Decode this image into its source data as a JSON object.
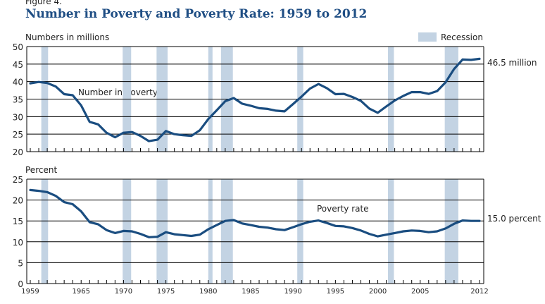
{
  "figure_label": "Figure 4.",
  "title": "Number in Poverty and Poverty Rate: 1959 to 2012",
  "legend": {
    "recession_label": "Recession",
    "recession_color": "#c3d3e3"
  },
  "colors": {
    "line": "#1a4d80",
    "title": "#1f4e84",
    "grid": "#000000"
  },
  "chart_data": [
    {
      "type": "line",
      "ylabel": "Numbers in millions",
      "series_label": "Number in poverty",
      "end_label": "46.5 million",
      "ylim": [
        20,
        50
      ],
      "yticks": [
        20,
        25,
        30,
        35,
        40,
        45,
        50
      ],
      "grid": true,
      "x": [
        1959,
        1960,
        1961,
        1962,
        1963,
        1964,
        1965,
        1966,
        1967,
        1968,
        1969,
        1970,
        1971,
        1972,
        1973,
        1974,
        1975,
        1976,
        1977,
        1978,
        1979,
        1980,
        1981,
        1982,
        1983,
        1984,
        1985,
        1986,
        1987,
        1988,
        1989,
        1990,
        1991,
        1992,
        1993,
        1994,
        1995,
        1996,
        1997,
        1998,
        1999,
        2000,
        2001,
        2002,
        2003,
        2004,
        2005,
        2006,
        2007,
        2008,
        2009,
        2010,
        2011,
        2012
      ],
      "values": [
        39.5,
        39.9,
        39.6,
        38.6,
        36.4,
        36.1,
        33.2,
        28.5,
        27.8,
        25.4,
        24.1,
        25.4,
        25.6,
        24.5,
        23.0,
        23.4,
        25.9,
        25.0,
        24.7,
        24.5,
        26.1,
        29.3,
        31.8,
        34.4,
        35.3,
        33.7,
        33.1,
        32.4,
        32.2,
        31.7,
        31.5,
        33.6,
        35.7,
        38.0,
        39.3,
        38.1,
        36.4,
        36.5,
        35.6,
        34.5,
        32.3,
        31.1,
        32.9,
        34.6,
        35.9,
        37.0,
        37.0,
        36.5,
        37.3,
        39.8,
        43.6,
        46.3,
        46.2,
        46.5
      ]
    },
    {
      "type": "line",
      "ylabel": "Percent",
      "series_label": "Poverty rate",
      "end_label": "15.0 percent",
      "ylim": [
        0,
        25
      ],
      "yticks": [
        0,
        5,
        10,
        15,
        20,
        25
      ],
      "grid": true,
      "x": [
        1959,
        1960,
        1961,
        1962,
        1963,
        1964,
        1965,
        1966,
        1967,
        1968,
        1969,
        1970,
        1971,
        1972,
        1973,
        1974,
        1975,
        1976,
        1977,
        1978,
        1979,
        1980,
        1981,
        1982,
        1983,
        1984,
        1985,
        1986,
        1987,
        1988,
        1989,
        1990,
        1991,
        1992,
        1993,
        1994,
        1995,
        1996,
        1997,
        1998,
        1999,
        2000,
        2001,
        2002,
        2003,
        2004,
        2005,
        2006,
        2007,
        2008,
        2009,
        2010,
        2011,
        2012
      ],
      "values": [
        22.4,
        22.2,
        21.9,
        21.0,
        19.5,
        19.0,
        17.3,
        14.7,
        14.2,
        12.8,
        12.1,
        12.6,
        12.5,
        11.9,
        11.1,
        11.2,
        12.3,
        11.8,
        11.6,
        11.4,
        11.7,
        13.0,
        14.0,
        15.0,
        15.2,
        14.4,
        14.0,
        13.6,
        13.4,
        13.0,
        12.8,
        13.5,
        14.2,
        14.8,
        15.1,
        14.5,
        13.8,
        13.7,
        13.3,
        12.7,
        11.9,
        11.3,
        11.7,
        12.1,
        12.5,
        12.7,
        12.6,
        12.3,
        12.5,
        13.2,
        14.3,
        15.1,
        15.0,
        15.0
      ]
    }
  ],
  "xlim": [
    1959,
    2012
  ],
  "xtick_labels": [
    "1959",
    "1965",
    "1970",
    "1975",
    "1980",
    "1985",
    "1990",
    "1995",
    "2000",
    "2005",
    "2012"
  ],
  "recessions": [
    [
      1960.3,
      1961.1
    ],
    [
      1969.9,
      1970.9
    ],
    [
      1973.9,
      1975.2
    ],
    [
      1980.0,
      1980.5
    ],
    [
      1981.5,
      1982.9
    ],
    [
      1990.5,
      1991.2
    ],
    [
      2001.2,
      2001.9
    ],
    [
      2007.9,
      2009.5
    ]
  ]
}
